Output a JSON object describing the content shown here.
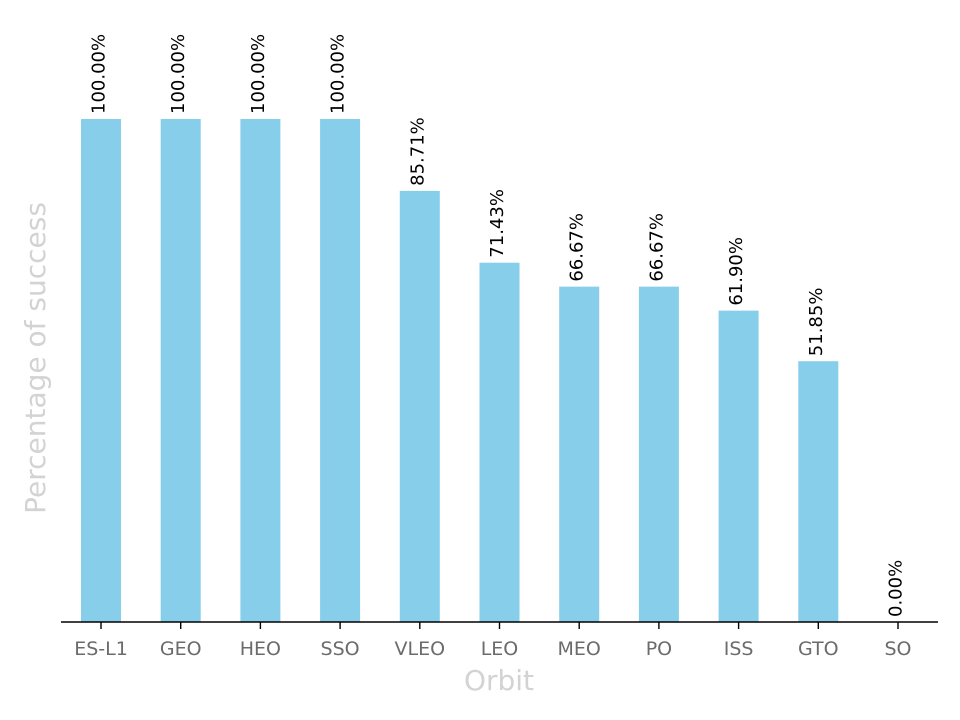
{
  "chart_data": {
    "type": "bar",
    "title": "",
    "xlabel": "Orbit",
    "ylabel": "Percentage of success",
    "categories": [
      "ES-L1",
      "GEO",
      "HEO",
      "SSO",
      "VLEO",
      "LEO",
      "MEO",
      "PO",
      "ISS",
      "GTO",
      "SO"
    ],
    "values": [
      100.0,
      100.0,
      100.0,
      100.0,
      85.71,
      71.43,
      66.67,
      66.67,
      61.9,
      51.85,
      0.0
    ],
    "data_labels": [
      "100.00%",
      "100.00%",
      "100.00%",
      "100.00%",
      "85.71%",
      "71.43%",
      "66.67%",
      "66.67%",
      "61.90%",
      "51.85%",
      "0.00%"
    ],
    "ylim": [
      0,
      100
    ],
    "grid": false,
    "legend": "none",
    "bar_color": "#87ceeb",
    "axis_title_color": "#d3d3d3",
    "tick_label_color": "#6b6b6b"
  }
}
